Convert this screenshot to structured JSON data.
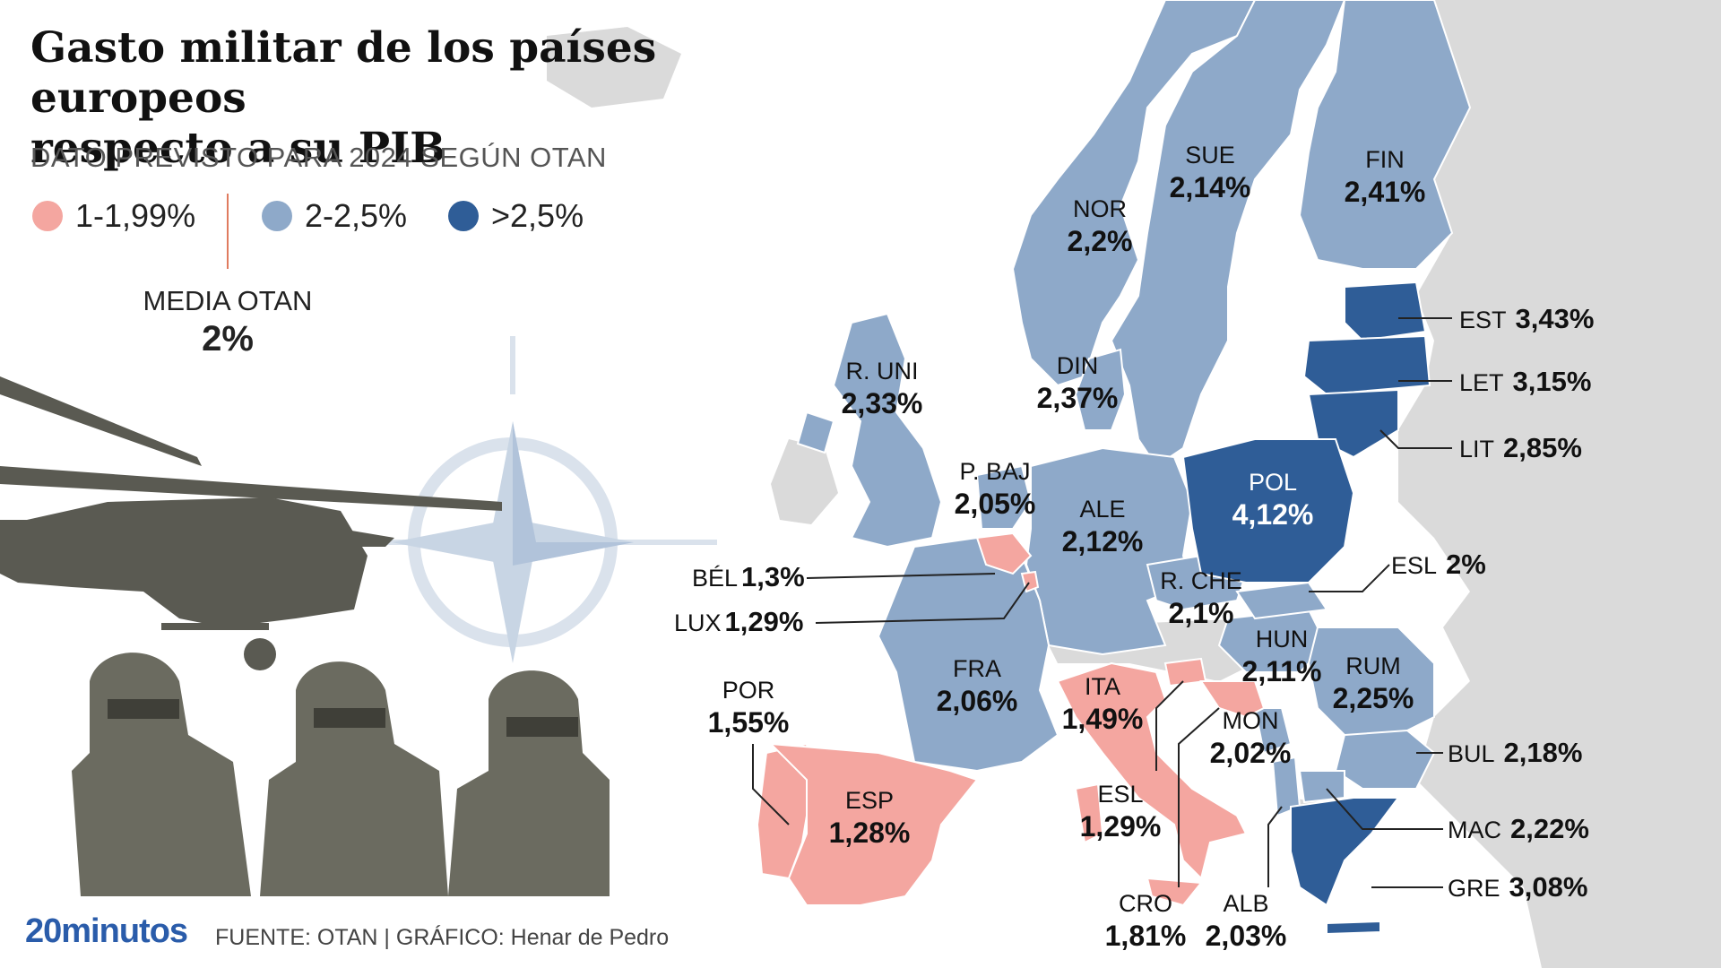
{
  "title_line1": "Gasto militar de los países europeos",
  "title_line2": "respecto a su PIB",
  "subtitle": "DATO PREVISTO PARA 2024 SEGÚN OTAN",
  "legend": [
    {
      "label": "1-1,99%",
      "color": "#f4a6a0"
    },
    {
      "label": "2-2,5%",
      "color": "#8ea9c9"
    },
    {
      "label": ">2,5%",
      "color": "#2f5d97"
    }
  ],
  "average": {
    "label": "MEDIA OTAN",
    "value": "2%"
  },
  "footer": {
    "logo": "20minutos",
    "source": "FUENTE: OTAN  |  GRÁFICO: Henar de Pedro"
  },
  "countries": {
    "sue": {
      "code": "SUE",
      "value": "2,14%"
    },
    "fin": {
      "code": "FIN",
      "value": "2,41%"
    },
    "nor": {
      "code": "NOR",
      "value": "2,2%"
    },
    "est": {
      "code": "EST",
      "value": "3,43%"
    },
    "let": {
      "code": "LET",
      "value": "3,15%"
    },
    "lit": {
      "code": "LIT",
      "value": "2,85%"
    },
    "runi": {
      "code": "R. UNI",
      "value": "2,33%"
    },
    "din": {
      "code": "DIN",
      "value": "2,37%"
    },
    "pbaj": {
      "code": "P. BAJ",
      "value": "2,05%"
    },
    "ale": {
      "code": "ALE",
      "value": "2,12%"
    },
    "pol": {
      "code": "POL",
      "value": "4,12%"
    },
    "bel": {
      "code": "BÉL",
      "value": "1,3%"
    },
    "rche": {
      "code": "R. CHE",
      "value": "2,1%"
    },
    "eslk": {
      "code": "ESL",
      "value": "2%"
    },
    "lux": {
      "code": "LUX",
      "value": "1,29%"
    },
    "hun": {
      "code": "HUN",
      "value": "2,11%"
    },
    "fra": {
      "code": "FRA",
      "value": "2,06%"
    },
    "rum": {
      "code": "RUM",
      "value": "2,25%"
    },
    "por": {
      "code": "POR",
      "value": "1,55%"
    },
    "ita": {
      "code": "ITA",
      "value": "1,49%"
    },
    "mon": {
      "code": "MON",
      "value": "2,02%"
    },
    "bul": {
      "code": "BUL",
      "value": "2,18%"
    },
    "esp": {
      "code": "ESP",
      "value": "1,28%"
    },
    "esln": {
      "code": "ESL",
      "value": "1,29%"
    },
    "mac": {
      "code": "MAC",
      "value": "2,22%"
    },
    "gre": {
      "code": "GRE",
      "value": "3,08%"
    },
    "cro": {
      "code": "CRO",
      "value": "1,81%"
    },
    "alb": {
      "code": "ALB",
      "value": "2,03%"
    }
  }
}
